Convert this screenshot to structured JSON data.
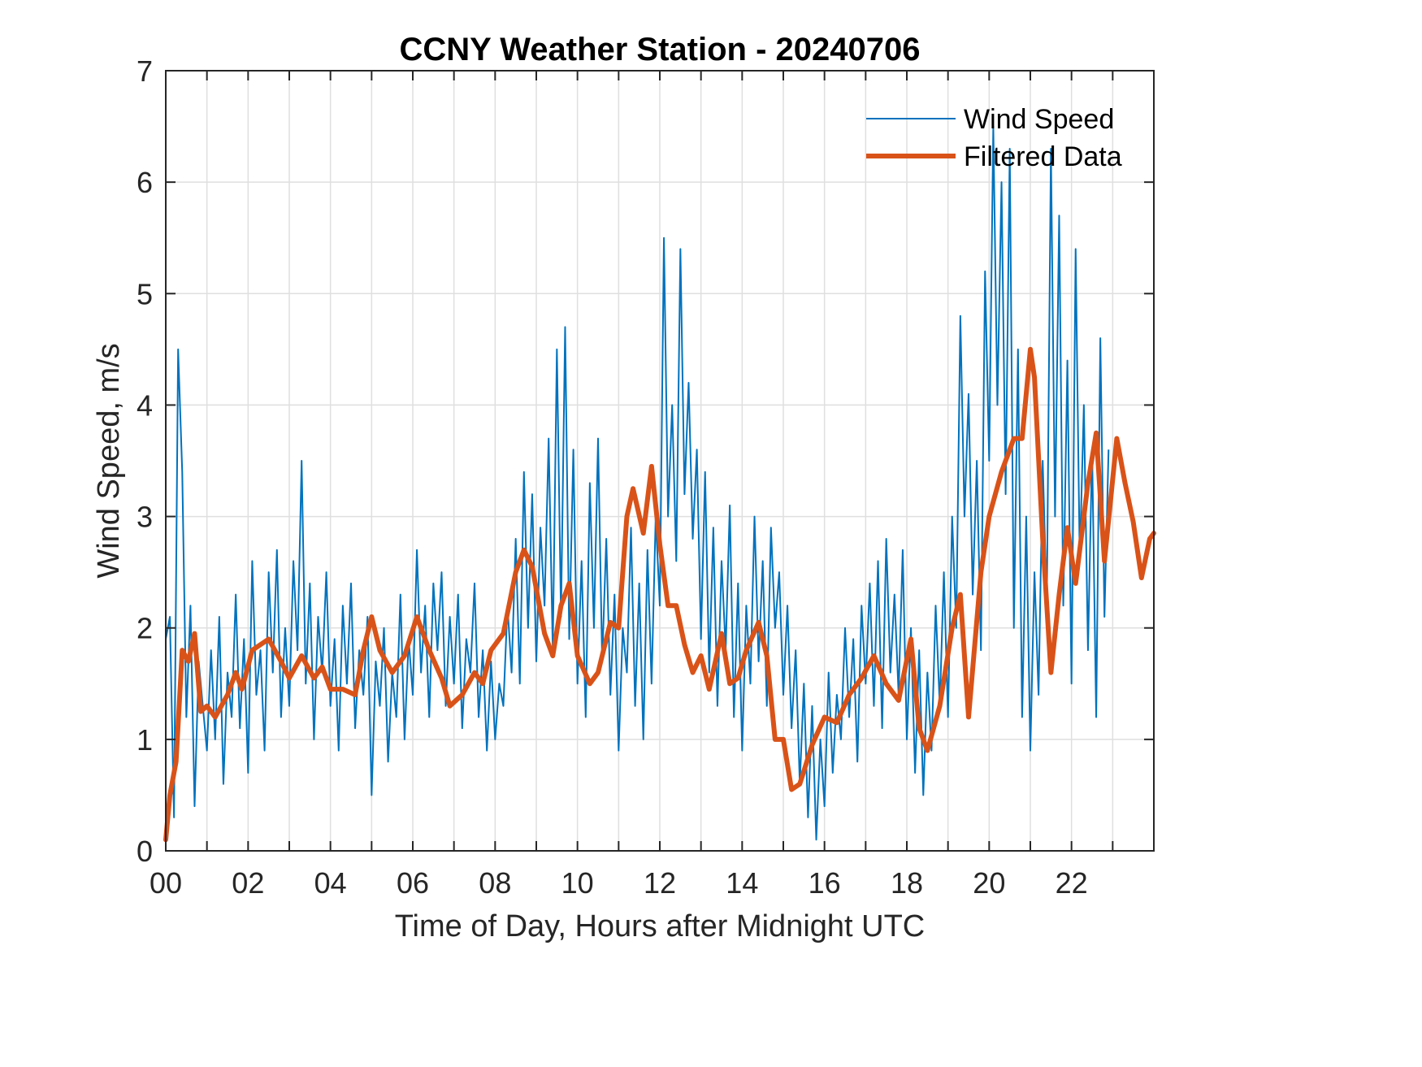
{
  "chart_data": {
    "type": "line",
    "title": "CCNY Weather Station - 20240706",
    "xlabel": "Time of Day, Hours after Midnight UTC",
    "ylabel": "Wind Speed, m/s",
    "xlim": [
      0,
      24
    ],
    "ylim": [
      0,
      7
    ],
    "xticks": [
      0,
      2,
      4,
      6,
      8,
      10,
      12,
      14,
      16,
      18,
      20,
      22
    ],
    "xtick_labels": [
      "00",
      "02",
      "04",
      "06",
      "08",
      "10",
      "12",
      "14",
      "16",
      "18",
      "20",
      "22"
    ],
    "xminor_ticks_every_hours": 1,
    "yticks": [
      0,
      1,
      2,
      3,
      4,
      5,
      6,
      7
    ],
    "ytick_labels": [
      "0",
      "1",
      "2",
      "3",
      "4",
      "5",
      "6",
      "7"
    ],
    "grid": true,
    "legend": {
      "position": "top-right",
      "entries": [
        "Wind Speed",
        "Filtered Data"
      ]
    },
    "series": [
      {
        "name": "Wind Speed",
        "color": "#0072BD",
        "style": "thin-line",
        "note": "raw 1-minute samples, approximated envelope",
        "x_step_hours": 0.1,
        "values": [
          1.9,
          2.1,
          0.3,
          4.5,
          3.4,
          1.2,
          2.2,
          0.4,
          1.7,
          1.3,
          0.9,
          1.8,
          1.0,
          2.1,
          0.6,
          1.6,
          1.2,
          2.3,
          1.1,
          1.9,
          0.7,
          2.6,
          1.4,
          1.8,
          0.9,
          2.5,
          1.6,
          2.7,
          1.2,
          2.0,
          1.3,
          2.6,
          1.8,
          3.5,
          1.5,
          2.4,
          1.0,
          2.1,
          1.6,
          2.5,
          1.3,
          1.9,
          0.9,
          2.2,
          1.5,
          2.4,
          1.1,
          1.8,
          1.4,
          2.1,
          0.5,
          1.7,
          1.3,
          2.0,
          0.8,
          1.6,
          1.2,
          2.3,
          1.0,
          1.9,
          1.4,
          2.7,
          1.6,
          2.2,
          1.2,
          2.4,
          1.8,
          2.5,
          1.3,
          2.1,
          1.5,
          2.3,
          1.1,
          1.9,
          1.6,
          2.4,
          1.2,
          1.8,
          0.9,
          1.7,
          1.0,
          1.5,
          1.3,
          2.2,
          1.6,
          2.8,
          1.5,
          3.4,
          2.0,
          3.2,
          1.7,
          2.9,
          2.2,
          3.7,
          1.8,
          4.5,
          2.1,
          4.7,
          1.9,
          3.6,
          1.5,
          2.6,
          1.2,
          3.3,
          2.0,
          3.7,
          1.7,
          2.8,
          1.4,
          2.3,
          0.9,
          2.0,
          1.6,
          2.9,
          1.3,
          2.4,
          1.0,
          2.7,
          1.5,
          3.0,
          2.2,
          5.5,
          3.0,
          4.0,
          2.6,
          5.4,
          3.2,
          4.2,
          2.8,
          3.6,
          1.9,
          3.4,
          1.6,
          2.9,
          1.3,
          2.6,
          1.8,
          3.1,
          1.2,
          2.4,
          0.9,
          2.2,
          1.5,
          3.0,
          1.7,
          2.6,
          1.3,
          2.9,
          2.0,
          2.5,
          1.4,
          2.2,
          1.1,
          1.8,
          0.6,
          1.5,
          0.3,
          1.3,
          0.1,
          1.0,
          0.4,
          1.6,
          0.7,
          1.4,
          1.0,
          2.0,
          1.2,
          1.9,
          0.8,
          2.2,
          1.5,
          2.4,
          1.3,
          2.6,
          1.1,
          2.8,
          1.6,
          2.3,
          1.4,
          2.7,
          1.0,
          2.0,
          0.7,
          1.8,
          0.5,
          1.6,
          0.9,
          2.2,
          1.3,
          2.5,
          1.2,
          3.0,
          2.0,
          4.8,
          3.0,
          4.1,
          2.3,
          3.5,
          1.8,
          5.2,
          3.5,
          6.5,
          4.0,
          6.0,
          3.2,
          6.3,
          2.0,
          4.5,
          1.2,
          3.0,
          0.9,
          2.5,
          1.4,
          3.5,
          2.2,
          6.3,
          3.0,
          5.7,
          2.2,
          4.4,
          1.5,
          5.4,
          2.6,
          4.0,
          1.8,
          3.6,
          1.2,
          4.6,
          2.1,
          3.6
        ]
      },
      {
        "name": "Filtered Data",
        "color": "#D95319",
        "style": "thick-line",
        "x": [
          0,
          0.1,
          0.25,
          0.4,
          0.55,
          0.7,
          0.85,
          1.0,
          1.2,
          1.5,
          1.7,
          1.85,
          2.1,
          2.5,
          2.8,
          3.0,
          3.3,
          3.6,
          3.8,
          4.0,
          4.3,
          4.6,
          4.8,
          5.0,
          5.2,
          5.5,
          5.8,
          6.1,
          6.4,
          6.7,
          6.9,
          7.2,
          7.5,
          7.7,
          7.9,
          8.2,
          8.5,
          8.7,
          8.9,
          9.2,
          9.4,
          9.6,
          9.8,
          10.0,
          10.3,
          10.5,
          10.8,
          11.0,
          11.2,
          11.35,
          11.6,
          11.8,
          12.0,
          12.2,
          12.4,
          12.6,
          12.8,
          13.0,
          13.2,
          13.5,
          13.7,
          13.9,
          14.1,
          14.4,
          14.6,
          14.8,
          15.0,
          15.2,
          15.4,
          15.7,
          16.0,
          16.3,
          16.6,
          16.9,
          17.2,
          17.5,
          17.8,
          18.1,
          18.3,
          18.5,
          18.8,
          19.1,
          19.3,
          19.5,
          19.8,
          20.0,
          20.3,
          20.6,
          20.8,
          21.0,
          21.1,
          21.3,
          21.5,
          21.7,
          21.9,
          22.1,
          22.4,
          22.6,
          22.8,
          23.1,
          23.3,
          23.5,
          23.7,
          23.9,
          24.0
        ],
        "values": [
          0.1,
          0.5,
          0.8,
          1.8,
          1.7,
          1.95,
          1.25,
          1.3,
          1.2,
          1.4,
          1.6,
          1.45,
          1.8,
          1.9,
          1.7,
          1.55,
          1.75,
          1.55,
          1.65,
          1.45,
          1.45,
          1.4,
          1.8,
          2.1,
          1.8,
          1.6,
          1.75,
          2.1,
          1.8,
          1.55,
          1.3,
          1.4,
          1.6,
          1.5,
          1.8,
          1.95,
          2.5,
          2.7,
          2.55,
          1.95,
          1.75,
          2.2,
          2.4,
          1.75,
          1.5,
          1.6,
          2.05,
          2.0,
          3.0,
          3.25,
          2.85,
          3.45,
          2.75,
          2.2,
          2.2,
          1.85,
          1.6,
          1.75,
          1.45,
          1.95,
          1.5,
          1.55,
          1.8,
          2.05,
          1.75,
          1.0,
          1.0,
          0.55,
          0.6,
          0.95,
          1.2,
          1.15,
          1.4,
          1.55,
          1.75,
          1.5,
          1.35,
          1.9,
          1.1,
          0.9,
          1.3,
          2.0,
          2.3,
          1.2,
          2.5,
          3.0,
          3.4,
          3.7,
          3.7,
          4.5,
          4.25,
          2.8,
          1.6,
          2.3,
          2.9,
          2.4,
          3.3,
          3.75,
          2.6,
          3.7,
          3.3,
          2.95,
          2.45,
          2.8,
          2.85
        ]
      }
    ]
  }
}
